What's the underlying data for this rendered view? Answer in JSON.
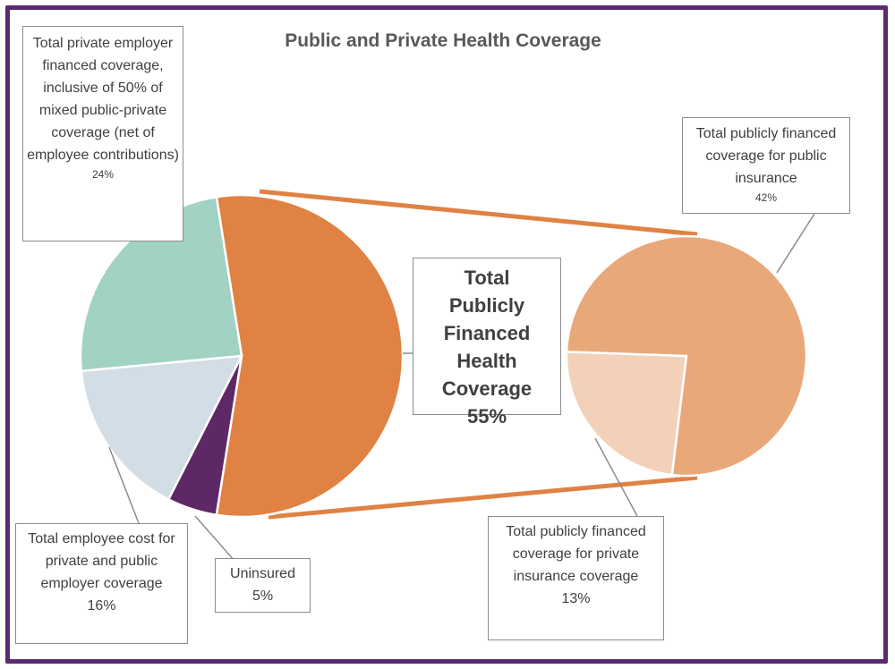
{
  "chart_data": {
    "type": "pie",
    "title": "Public and Private Health Coverage",
    "main_pie": {
      "slices": [
        {
          "label": "Total Publicly Financed Health Coverage",
          "value": 55,
          "pct_text": "55%",
          "color": "#e08243"
        },
        {
          "label": "Total private employer financed coverage, inclusive of 50% of mixed public-private coverage (net of employee contributions)",
          "value": 24,
          "pct_text": "24%",
          "color": "#a1d2c4"
        },
        {
          "label": "Total employee cost for private and public employer coverage",
          "value": 16,
          "pct_text": "16%",
          "color": "#d3dde5"
        },
        {
          "label": "Uninsured",
          "value": 5,
          "pct_text": "5%",
          "color": "#5e2766"
        }
      ]
    },
    "secondary_pie": {
      "slices": [
        {
          "label": "Total publicly financed coverage for public insurance",
          "value": 42,
          "pct_text": "42%",
          "color": "#e9a87a"
        },
        {
          "label": "Total publicly financed coverage for private insurance coverage",
          "value": 13,
          "pct_text": "13%",
          "color": "#f3d1b8"
        }
      ]
    },
    "connector_color": "#e08243",
    "legend": "none"
  }
}
